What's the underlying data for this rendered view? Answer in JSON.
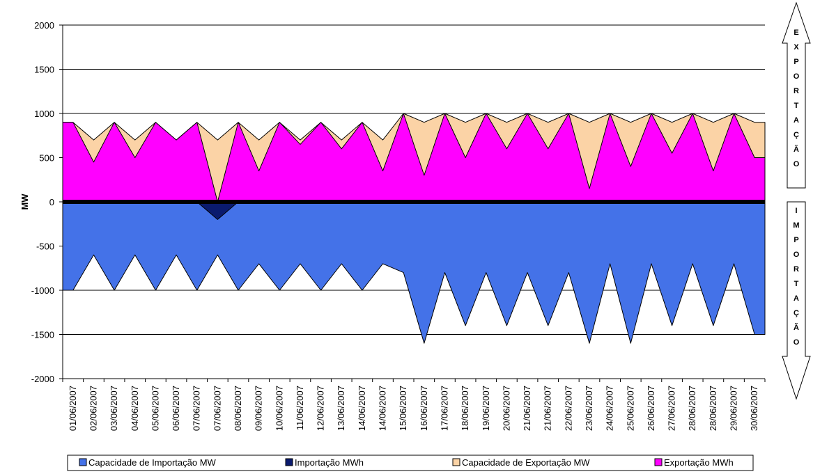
{
  "chart_data": {
    "type": "area",
    "title": "",
    "xlabel": "",
    "ylabel": "MW",
    "ylim": [
      -2000,
      2000
    ],
    "yticks": [
      2000,
      1500,
      1000,
      500,
      0,
      -500,
      -1000,
      -1500,
      -2000
    ],
    "grid": true,
    "legend_position": "bottom",
    "categories": [
      "01/06/2007",
      "02/06/2007",
      "03/06/2007",
      "04/06/2007",
      "05/06/2007",
      "06/06/2007",
      "07/06/2007",
      "07/06/2007",
      "08/06/2007",
      "09/06/2007",
      "10/06/2007",
      "11/06/2007",
      "12/06/2007",
      "13/06/2007",
      "14/06/2007",
      "14/06/2007",
      "15/06/2007",
      "16/06/2007",
      "17/06/2007",
      "18/06/2007",
      "19/06/2007",
      "20/06/2007",
      "21/06/2007",
      "21/06/2007",
      "22/06/2007",
      "23/06/2007",
      "24/06/2007",
      "25/06/2007",
      "26/06/2007",
      "27/06/2007",
      "28/06/2007",
      "28/06/2007",
      "29/06/2007",
      "30/06/2007"
    ],
    "series": [
      {
        "name": "Capacidade de Importação MW",
        "color": "#4472e8",
        "values": [
          -1000,
          -600,
          -1000,
          -600,
          -1000,
          -600,
          -1000,
          -600,
          -1000,
          -700,
          -1000,
          -700,
          -1000,
          -700,
          -1000,
          -700,
          -800,
          -1600,
          -800,
          -1400,
          -800,
          -1400,
          -800,
          -1400,
          -800,
          -1600,
          -700,
          -1600,
          -700,
          -1400,
          -700,
          -1400,
          -700,
          -1500
        ]
      },
      {
        "name": "Importação MWh",
        "color": "#0a1a6e",
        "values": [
          0,
          0,
          0,
          0,
          0,
          0,
          0,
          -200,
          0,
          0,
          0,
          0,
          0,
          0,
          0,
          0,
          0,
          0,
          0,
          0,
          0,
          0,
          0,
          0,
          0,
          0,
          0,
          0,
          0,
          0,
          0,
          0,
          0,
          0
        ]
      },
      {
        "name": "Capacidade de Exportação MW",
        "color": "#fbd3a6",
        "values": [
          900,
          700,
          900,
          700,
          900,
          700,
          900,
          700,
          900,
          700,
          900,
          700,
          900,
          700,
          900,
          700,
          1000,
          900,
          1000,
          900,
          1000,
          900,
          1000,
          900,
          1000,
          900,
          1000,
          900,
          1000,
          900,
          1000,
          900,
          1000,
          900
        ]
      },
      {
        "name": "Exportação MWh",
        "color": "#ff00ff",
        "values": [
          900,
          450,
          900,
          500,
          900,
          700,
          900,
          0,
          900,
          350,
          900,
          650,
          900,
          600,
          900,
          350,
          1000,
          300,
          1000,
          500,
          1000,
          600,
          1000,
          600,
          1000,
          150,
          1000,
          400,
          1000,
          550,
          1000,
          350,
          1000,
          500
        ]
      }
    ],
    "side_arrows": {
      "up_letters": [
        "E",
        "X",
        "P",
        "O",
        "R",
        "T",
        "A",
        "Ç",
        "Ã",
        "O"
      ],
      "down_letters": [
        "I",
        "M",
        "P",
        "O",
        "R",
        "T",
        "A",
        "Ç",
        "Ã",
        "O"
      ]
    }
  }
}
